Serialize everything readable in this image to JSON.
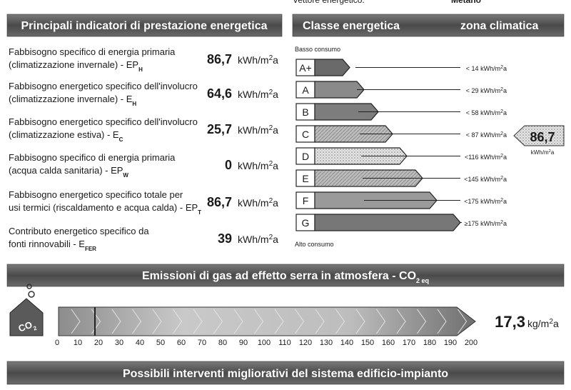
{
  "header_cut": {
    "label": "Vettore energetico:",
    "value": "Metano"
  },
  "indicators": {
    "title": "Principali indicatori di prestazione energetica",
    "unit": {
      "base": "kWh/m",
      "sup": "2",
      "tail": "a"
    },
    "items": [
      {
        "lines": [
          "Fabbisogno specifico di energia primaria",
          "(climatizzazione invernale) - EP"
        ],
        "sub": "H",
        "value": "86,7"
      },
      {
        "lines": [
          "Fabbisogno energetico specifico dell'involucro",
          "(climatizzazione invernale) - E"
        ],
        "sub": "H",
        "value": "64,6"
      },
      {
        "lines": [
          "Fabbisogno energetico specifico dell'involucro",
          "(climatizzazione estiva) - E"
        ],
        "sub": "C",
        "value": "25,7"
      },
      {
        "lines": [
          "Fabbisogno specifico di energia primaria",
          "(acqua calda sanitaria) - EP"
        ],
        "sub": "W",
        "value": "0"
      },
      {
        "lines": [
          "Fabbisogno energetico specifico totale per",
          "usi termici (riscaldamento e acqua calda) - EP"
        ],
        "sub": "T",
        "value": "86,7"
      },
      {
        "lines": [
          "Contributo energetico specifico da",
          "fonti rinnovabili - E"
        ],
        "sub": "FER",
        "value": "39"
      }
    ]
  },
  "classes": {
    "title": "Classe energetica",
    "zone_title": "zona climatica",
    "top_note": "Basso consumo",
    "bottom_note": "Alto consumo",
    "unit": {
      "base": "kWh/m",
      "sup": "2",
      "tail": "a"
    },
    "items": [
      {
        "label": "A+",
        "limit": "< 14"
      },
      {
        "label": "A",
        "limit": "< 29"
      },
      {
        "label": "B",
        "limit": "< 58"
      },
      {
        "label": "C",
        "limit": "< 87"
      },
      {
        "label": "D",
        "limit": "<116"
      },
      {
        "label": "E",
        "limit": "<145"
      },
      {
        "label": "F",
        "limit": "<175"
      },
      {
        "label": "G",
        "limit": "≥175"
      }
    ],
    "indicator": {
      "value": "86,7",
      "unit": {
        "base": "kWh/m",
        "sup": "2",
        "tail": "a"
      }
    }
  },
  "emissions": {
    "title": "Emissioni di gas ad effetto serra in atmosfera - CO",
    "title_sub": "2 eq",
    "icon": {
      "text": "CO",
      "sub": "2"
    },
    "scale": [
      "0",
      "10",
      "20",
      "30",
      "40",
      "50",
      "60",
      "70",
      "80",
      "90",
      "100",
      "110",
      "120",
      "130",
      "140",
      "150",
      "160",
      "170",
      "180",
      "190",
      "200"
    ],
    "value": "17,3",
    "unit": {
      "base": "kg/m",
      "sup": "2",
      "tail": "a"
    }
  },
  "footer": {
    "title": "Possibili interventi migliorativi del sistema edificio-impianto"
  }
}
